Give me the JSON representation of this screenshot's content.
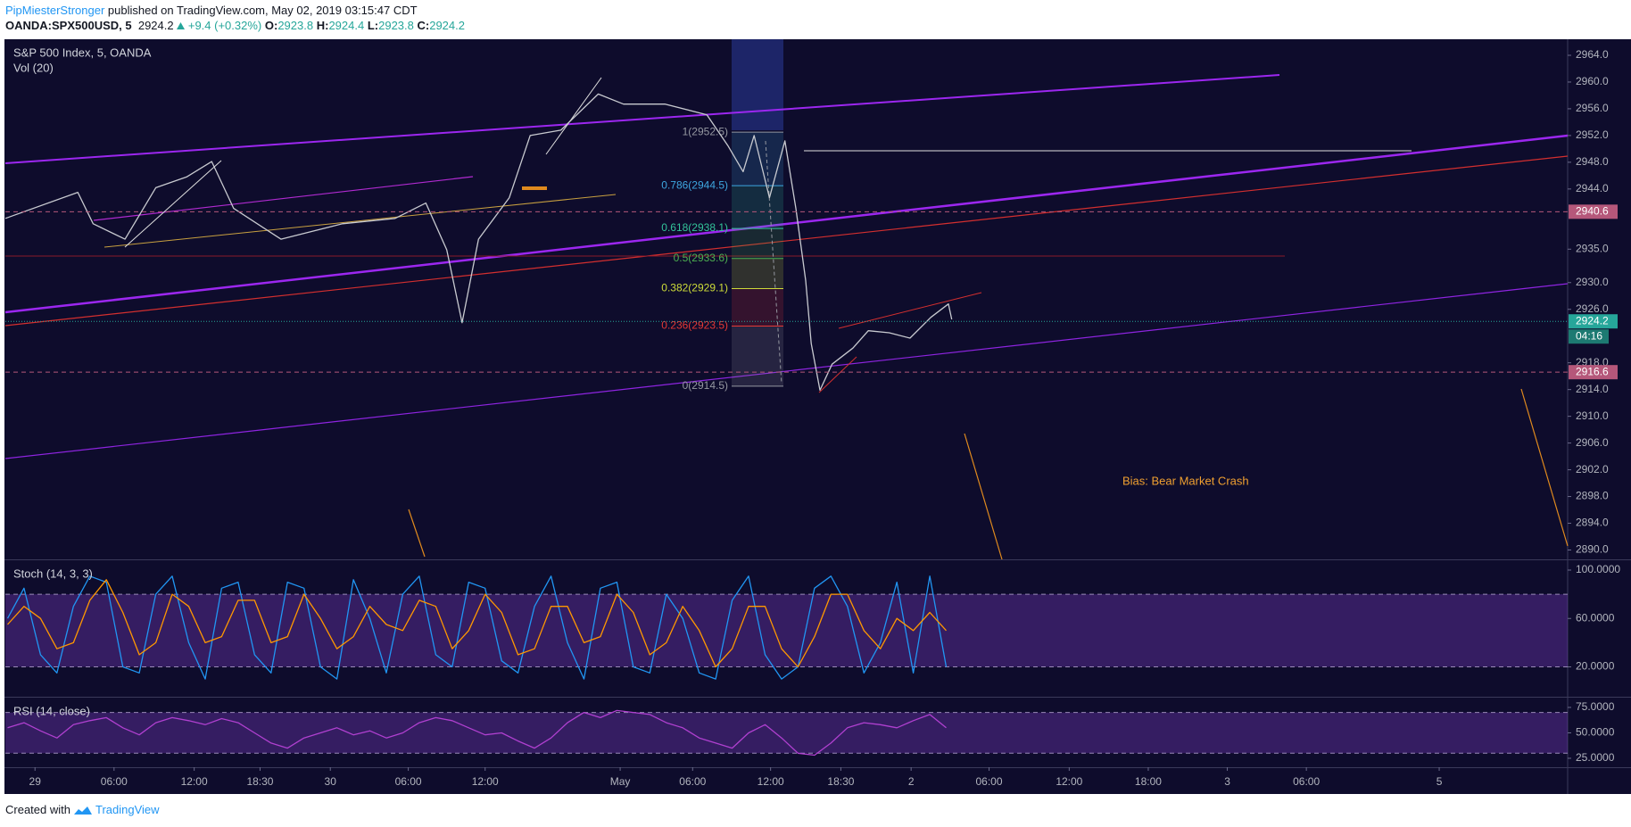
{
  "header": {
    "author": "PipMiesterStronger",
    "published": "published on TradingView.com, May 02, 2019 03:15:47 CDT",
    "symbol": "OANDA:SPX500USD, 5",
    "last": "2924.2",
    "change": "+9.4 (+0.32%)",
    "ohlc": [
      {
        "label": "O:",
        "value": "2923.8"
      },
      {
        "label": "H:",
        "value": "2924.4"
      },
      {
        "label": "L:",
        "value": "2923.8"
      },
      {
        "label": "C:",
        "value": "2924.2"
      }
    ]
  },
  "chart_data": [
    {
      "type": "line",
      "title": "S&P 500 Index, 5, OANDA",
      "subtitle": "Vol (20)",
      "annotation": "Bias: Bear Market Crash",
      "xlim": [
        -27,
        1396
      ],
      "ylim": [
        2888.6,
        2966.4
      ],
      "yticks": [
        {
          "value": 2964,
          "label": "2964.0"
        },
        {
          "value": 2960,
          "label": "2960.0"
        },
        {
          "value": 2956,
          "label": "2956.0"
        },
        {
          "value": 2952,
          "label": "2952.0"
        },
        {
          "value": 2948,
          "label": "2948.0"
        },
        {
          "value": 2944,
          "label": "2944.0"
        },
        {
          "value": 2935,
          "label": "2935.0"
        },
        {
          "value": 2930,
          "label": "2930.0"
        },
        {
          "value": 2926,
          "label": "2926.0"
        },
        {
          "value": 2918,
          "label": "2918.0"
        },
        {
          "value": 2914,
          "label": "2914.0"
        },
        {
          "value": 2910,
          "label": "2910.0"
        },
        {
          "value": 2906,
          "label": "2906.0"
        },
        {
          "value": 2902,
          "label": "2902.0"
        },
        {
          "value": 2898,
          "label": "2898.0"
        },
        {
          "value": 2894,
          "label": "2894.0"
        },
        {
          "value": 2890,
          "label": "2890.0"
        }
      ],
      "x": [
        -27,
        39,
        53,
        82,
        110,
        138,
        161,
        181,
        224,
        280,
        328,
        356,
        375,
        389,
        404,
        432,
        451,
        479,
        513,
        536,
        574,
        612,
        631,
        645,
        655,
        669,
        683,
        693,
        702,
        707,
        715,
        726,
        745,
        759,
        778,
        797,
        816,
        832,
        835
      ],
      "series": [
        {
          "color": "#c8cad0",
          "values": [
            2939.6,
            2943.5,
            2938.8,
            2936.5,
            2944.2,
            2945.8,
            2948.1,
            2941.1,
            2936.5,
            2938.8,
            2939.6,
            2941.9,
            2934.9,
            2924.0,
            2936.5,
            2942.7,
            2952.0,
            2952.8,
            2958.2,
            2956.7,
            2956.7,
            2955.1,
            2950.5,
            2946.6,
            2952.0,
            2942.7,
            2951.2,
            2941.1,
            2930.3,
            2920.9,
            2913.9,
            2917.8,
            2920.2,
            2922.8,
            2922.5,
            2921.7,
            2924.8,
            2926.8,
            2924.5
          ]
        }
      ],
      "price_lines": [
        {
          "value": 2940.6,
          "color": "#b5577a"
        },
        {
          "value": 2924.2,
          "color": "#26a69a",
          "countdown": "04:16"
        },
        {
          "value": 2916.6,
          "color": "#b5577a"
        }
      ],
      "fib": [
        {
          "label": "1(2952.5)",
          "value": 2952.5,
          "color": "#9598a1"
        },
        {
          "label": "0.786(2944.5)",
          "value": 2944.5,
          "color": "#3ea7e0"
        },
        {
          "label": "0.618(2938.1)",
          "value": 2938.1,
          "color": "#33c49a"
        },
        {
          "label": "0.5(2933.6)",
          "value": 2933.6,
          "color": "#4caf50"
        },
        {
          "label": "0.382(2929.1)",
          "value": 2929.1,
          "color": "#cddc39"
        },
        {
          "label": "0.236(2923.5)",
          "value": 2923.5,
          "color": "#e53935"
        },
        {
          "label": "0(2914.5)",
          "value": 2914.5,
          "color": "#9598a1"
        }
      ]
    },
    {
      "type": "line",
      "title": "Stoch (14, 3, 3)",
      "xlim": [
        -27,
        1396
      ],
      "ylim": [
        -4.7,
        108.1
      ],
      "yticks": [
        {
          "value": 100,
          "label": "100.0000"
        },
        {
          "value": 60,
          "label": "60.0000"
        },
        {
          "value": 20,
          "label": "20.0000"
        }
      ],
      "band": [
        20,
        80
      ],
      "x": [
        -25,
        -10,
        5,
        20,
        35,
        50,
        65,
        80,
        95,
        110,
        125,
        140,
        155,
        170,
        185,
        200,
        215,
        230,
        245,
        260,
        275,
        290,
        305,
        320,
        335,
        350,
        365,
        380,
        395,
        410,
        425,
        440,
        455,
        470,
        485,
        500,
        515,
        530,
        545,
        560,
        575,
        590,
        605,
        620,
        635,
        650,
        665,
        680,
        695,
        710,
        725,
        740,
        755,
        770,
        785,
        800,
        815,
        830
      ],
      "series": [
        {
          "color": "#2196f3",
          "values": [
            60,
            85,
            30,
            15,
            70,
            95,
            90,
            20,
            15,
            80,
            95,
            40,
            10,
            85,
            90,
            30,
            15,
            90,
            85,
            20,
            10,
            92,
            60,
            15,
            80,
            95,
            30,
            20,
            90,
            85,
            25,
            15,
            70,
            95,
            40,
            10,
            85,
            90,
            20,
            15,
            80,
            60,
            15,
            10,
            75,
            95,
            30,
            10,
            20,
            85,
            95,
            70,
            15,
            40,
            90,
            15,
            95,
            20
          ]
        },
        {
          "color": "#ff9800",
          "values": [
            55,
            70,
            60,
            35,
            40,
            75,
            92,
            65,
            30,
            40,
            80,
            70,
            40,
            45,
            75,
            75,
            40,
            45,
            80,
            60,
            35,
            45,
            70,
            55,
            50,
            75,
            70,
            35,
            50,
            80,
            65,
            30,
            35,
            70,
            70,
            40,
            45,
            80,
            65,
            30,
            40,
            70,
            50,
            20,
            35,
            70,
            70,
            35,
            20,
            45,
            80,
            80,
            50,
            35,
            60,
            50,
            65,
            50
          ]
        }
      ]
    },
    {
      "type": "line",
      "title": "RSI (14, close)",
      "xlim": [
        -27,
        1396
      ],
      "ylim": [
        16.2,
        84.6
      ],
      "yticks": [
        {
          "value": 75,
          "label": "75.0000"
        },
        {
          "value": 50,
          "label": "50.0000"
        },
        {
          "value": 25,
          "label": "25.0000"
        }
      ],
      "band": [
        30,
        70
      ],
      "x": [
        -25,
        -10,
        5,
        20,
        35,
        50,
        65,
        80,
        95,
        110,
        125,
        140,
        155,
        170,
        185,
        200,
        215,
        230,
        245,
        260,
        275,
        290,
        305,
        320,
        335,
        350,
        365,
        380,
        395,
        410,
        425,
        440,
        455,
        470,
        485,
        500,
        515,
        530,
        545,
        560,
        575,
        590,
        605,
        620,
        635,
        650,
        665,
        680,
        695,
        710,
        725,
        740,
        755,
        770,
        785,
        800,
        815,
        830
      ],
      "series": [
        {
          "color": "#b040d0",
          "values": [
            55,
            60,
            52,
            45,
            58,
            62,
            65,
            55,
            48,
            60,
            65,
            62,
            58,
            64,
            60,
            50,
            40,
            35,
            45,
            50,
            55,
            48,
            52,
            45,
            50,
            60,
            65,
            62,
            55,
            48,
            50,
            42,
            35,
            45,
            60,
            70,
            65,
            72,
            70,
            68,
            60,
            55,
            45,
            40,
            35,
            50,
            58,
            45,
            30,
            28,
            40,
            55,
            60,
            58,
            55,
            62,
            68,
            55
          ]
        }
      ],
      "xticks": [
        {
          "value": 0,
          "label": "29"
        },
        {
          "value": 72,
          "label": "06:00"
        },
        {
          "value": 145,
          "label": "12:00"
        },
        {
          "value": 205,
          "label": "18:30"
        },
        {
          "value": 269,
          "label": "30"
        },
        {
          "value": 340,
          "label": "06:00"
        },
        {
          "value": 410,
          "label": "12:00"
        },
        {
          "value": 533,
          "label": "May"
        },
        {
          "value": 599,
          "label": "06:00"
        },
        {
          "value": 670,
          "label": "12:00"
        },
        {
          "value": 734,
          "label": "18:30"
        },
        {
          "value": 798,
          "label": "2"
        },
        {
          "value": 869,
          "label": "06:00"
        },
        {
          "value": 942,
          "label": "12:00"
        },
        {
          "value": 1014,
          "label": "18:00"
        },
        {
          "value": 1086,
          "label": "3"
        },
        {
          "value": 1158,
          "label": "06:00"
        },
        {
          "value": 1279,
          "label": "5"
        }
      ]
    }
  ],
  "footer": {
    "text": "Created with",
    "brand": "TradingView"
  }
}
